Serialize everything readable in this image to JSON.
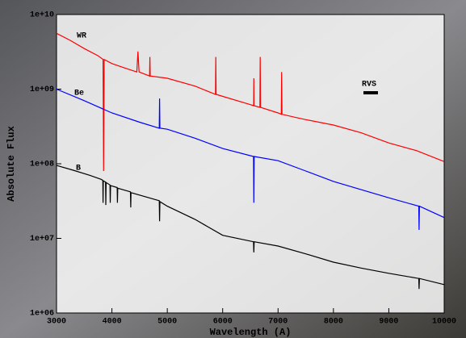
{
  "chart_data": {
    "type": "line",
    "xlabel": "Wavelength (A)",
    "ylabel": "Absolute Flux",
    "annotation": "RVS",
    "log_y": true,
    "xlim": [
      3000,
      10000
    ],
    "xticks": [
      3000,
      4000,
      5000,
      6000,
      7000,
      8000,
      9000,
      10000
    ],
    "ylim": [
      1000000,
      10000000000
    ],
    "yticks": [
      {
        "value": 1000000,
        "label": "1e+06"
      },
      {
        "value": 10000000,
        "label": "1e+07"
      },
      {
        "value": 100000000,
        "label": "1e+08"
      },
      {
        "value": 1000000000,
        "label": "1e+09"
      },
      {
        "value": 10000000000,
        "label": "1e+10"
      }
    ],
    "series": [
      {
        "name": "WR",
        "color": "#ff0000",
        "x": [
          3000,
          3250,
          3500,
          3750,
          3840,
          3850,
          3860,
          4000,
          4250,
          4450,
          4470,
          4490,
          4680,
          4686,
          4692,
          5000,
          5500,
          5870,
          5876,
          5882,
          6500,
          6560,
          6563,
          6566,
          6672,
          6678,
          6684,
          7000,
          7059,
          7065,
          7071,
          7300,
          7500,
          8000,
          8500,
          9000,
          9500,
          10000
        ],
        "values": [
          5600000000,
          4500000000,
          3500000000,
          2800000000,
          2500000000,
          80000000,
          2500000000,
          2200000000,
          1900000000,
          1700000000,
          3200000000,
          1700000000,
          1500000000,
          2700000000,
          1500000000,
          1400000000,
          1100000000,
          850000000,
          2700000000,
          850000000,
          620000000,
          600000000,
          1400000000,
          600000000,
          570000000,
          2700000000,
          570000000,
          480000000,
          460000000,
          1700000000,
          460000000,
          420000000,
          390000000,
          330000000,
          260000000,
          190000000,
          150000000,
          107000000
        ]
      },
      {
        "name": "Be",
        "color": "#0000ff",
        "x": [
          3000,
          3500,
          4000,
          4500,
          4855,
          4861,
          4867,
          5000,
          5500,
          6000,
          6557,
          6563,
          6569,
          7000,
          7500,
          8000,
          8500,
          9000,
          9540,
          9546,
          9552,
          10000
        ],
        "values": [
          1000000000,
          700000000,
          480000000,
          360000000,
          300000000,
          750000000,
          300000000,
          290000000,
          220000000,
          160000000,
          125000000,
          30000000,
          125000000,
          110000000,
          80000000,
          58000000,
          45000000,
          35000000,
          27000000,
          13000000,
          27000000,
          19000000
        ]
      },
      {
        "name": "B",
        "color": "#000000",
        "x": [
          3000,
          3300,
          3600,
          3800,
          3835,
          3840,
          3845,
          3885,
          3890,
          3895,
          3965,
          3970,
          3975,
          4095,
          4100,
          4105,
          4335,
          4340,
          4345,
          4855,
          4861,
          4867,
          5000,
          5500,
          6000,
          6557,
          6563,
          6569,
          7000,
          7500,
          8000,
          8500,
          9000,
          9540,
          9546,
          9552,
          10000
        ],
        "values": [
          95000000,
          82000000,
          70000000,
          62000000,
          60000000,
          30000000,
          59000000,
          57000000,
          28000000,
          56000000,
          52000000,
          30000000,
          51000000,
          48000000,
          30000000,
          47000000,
          42000000,
          26000000,
          41000000,
          32000000,
          17000000,
          31000000,
          27000000,
          18000000,
          11000000,
          9000000,
          6500000,
          9000000,
          7900000,
          6200000,
          4800000,
          4000000,
          3400000,
          2900000,
          2100000,
          2900000,
          2400000
        ]
      }
    ]
  }
}
